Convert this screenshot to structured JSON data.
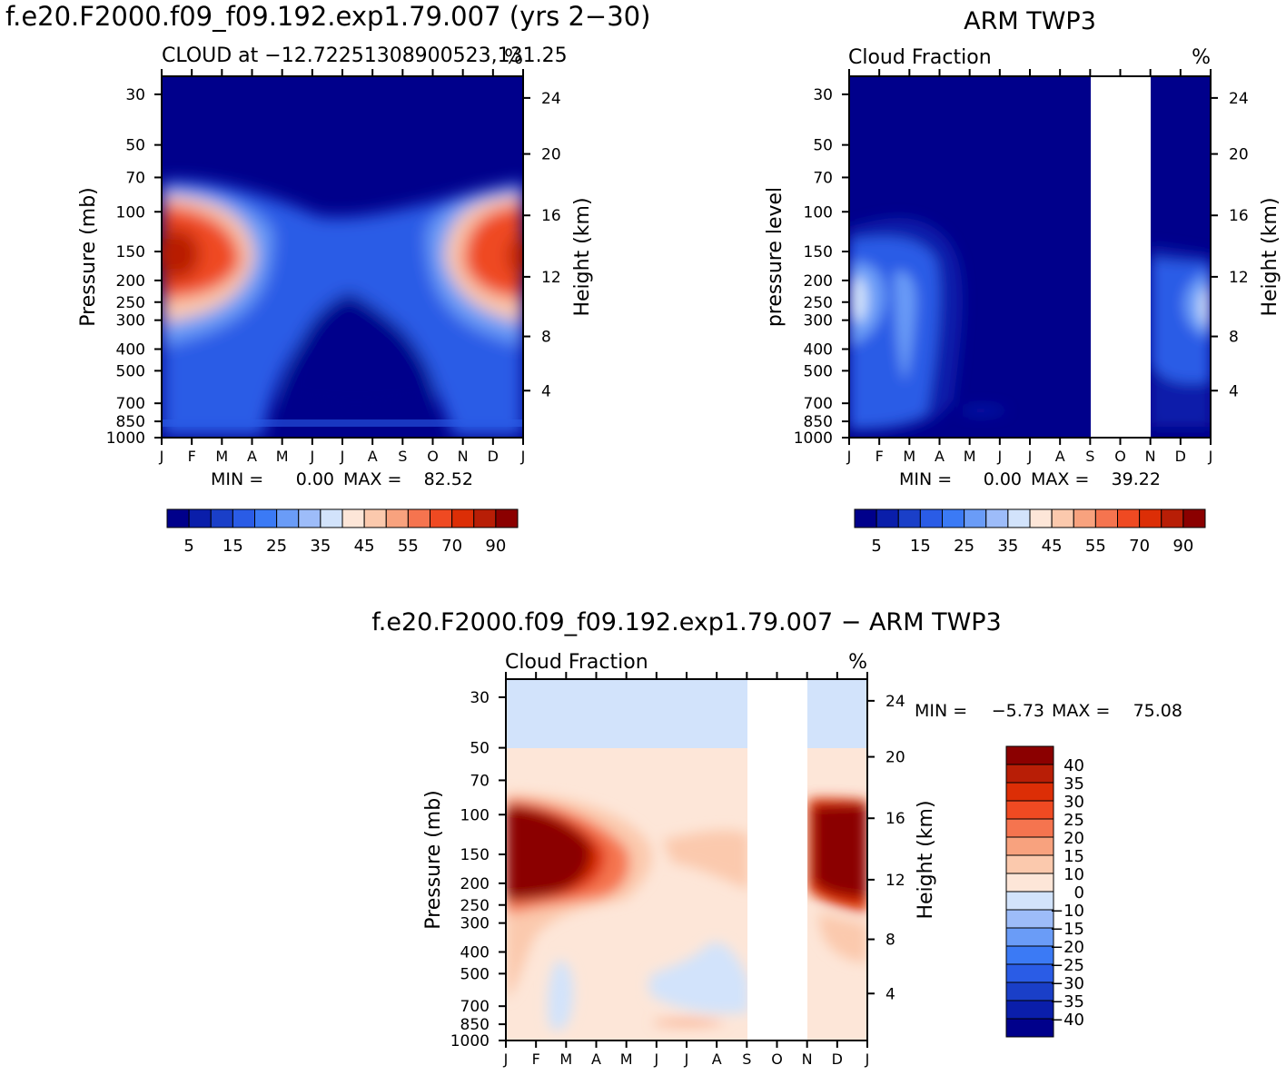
{
  "figure": {
    "title_left": "f.e20.F2000.f09_f09.192.exp1.79.007 (yrs 2−30)",
    "title_right": "ARM TWP3",
    "title_bottom": "f.e20.F2000.f09_f09.192.exp1.79.007 − ARM TWP3"
  },
  "palette": {
    "seq": [
      "#00008b",
      "#0a1eaa",
      "#1a3fc8",
      "#2a5ce6",
      "#3b7af5",
      "#6a9cf7",
      "#9dbcf9",
      "#d2e3fb",
      "#fde6d8",
      "#fbc9ad",
      "#f8a27e",
      "#f5744f",
      "#ef4a22",
      "#dc2e06",
      "#b81e06",
      "#8b0000"
    ],
    "seq_labels": [
      "5",
      "15",
      "25",
      "35",
      "45",
      "55",
      "70",
      "90"
    ],
    "diff": [
      "#00008b",
      "#0a1eaa",
      "#1a3fc8",
      "#2a5ce6",
      "#3b7af5",
      "#6a9cf7",
      "#9dbcf9",
      "#d2e3fb",
      "#fde6d8",
      "#fbc9ad",
      "#f8a27e",
      "#f5744f",
      "#ef4a22",
      "#dc2e06",
      "#b81e06",
      "#8b0000"
    ],
    "diff_labels": [
      "40",
      "35",
      "30",
      "25",
      "20",
      "15",
      "10",
      "0",
      "−10",
      "−15",
      "−20",
      "−25",
      "−30",
      "−35",
      "−40"
    ]
  },
  "chart_data": [
    {
      "type": "heatmap",
      "title": "CLOUD at −12.72251308900523,131.25",
      "units": "%",
      "ylabel": "Pressure (mb)",
      "y2label": "Height (km)",
      "categories": [
        "J",
        "F",
        "M",
        "A",
        "M",
        "J",
        "J",
        "A",
        "S",
        "O",
        "N",
        "D",
        "J"
      ],
      "y_ticks": [
        "30",
        "50",
        "70",
        "100",
        "150",
        "200",
        "250",
        "300",
        "400",
        "500",
        "700",
        "850",
        "1000"
      ],
      "y2_ticks": [
        "24",
        "20",
        "16",
        "12",
        "8",
        "4"
      ],
      "stats": {
        "min_label": "MIN =",
        "min": "0.00",
        "max_label": "MAX =",
        "max": "82.52"
      },
      "max_value": 82.52,
      "missing_months": []
    },
    {
      "type": "heatmap",
      "title": "Cloud Fraction",
      "units": "%",
      "ylabel": "pressure level",
      "y2label": "Height (km)",
      "categories": [
        "J",
        "F",
        "M",
        "A",
        "M",
        "J",
        "J",
        "A",
        "S",
        "O",
        "N",
        "D",
        "J"
      ],
      "y_ticks": [
        "30",
        "50",
        "70",
        "100",
        "150",
        "200",
        "250",
        "300",
        "400",
        "500",
        "700",
        "850",
        "1000"
      ],
      "y2_ticks": [
        "24",
        "20",
        "16",
        "12",
        "8",
        "4"
      ],
      "stats": {
        "min_label": "MIN =",
        "min": "0.00",
        "max_label": "MAX =",
        "max": "39.22"
      },
      "max_value": 39.22,
      "missing_months": [
        "S",
        "O",
        "N"
      ]
    },
    {
      "type": "heatmap",
      "title": "Cloud Fraction",
      "units": "%",
      "ylabel": "Pressure (mb)",
      "y2label": "Height (km)",
      "categories": [
        "J",
        "F",
        "M",
        "A",
        "M",
        "J",
        "J",
        "A",
        "S",
        "O",
        "N",
        "D",
        "J"
      ],
      "y_ticks": [
        "30",
        "50",
        "70",
        "100",
        "150",
        "200",
        "250",
        "300",
        "400",
        "500",
        "700",
        "850",
        "1000"
      ],
      "y2_ticks": [
        "24",
        "20",
        "16",
        "12",
        "8",
        "4"
      ],
      "stats": {
        "min_label": "MIN =",
        "min": "−5.73",
        "max_label": "MAX =",
        "max": "75.08"
      },
      "max_value": 75.08,
      "missing_months": [
        "S",
        "O",
        "N"
      ]
    }
  ]
}
